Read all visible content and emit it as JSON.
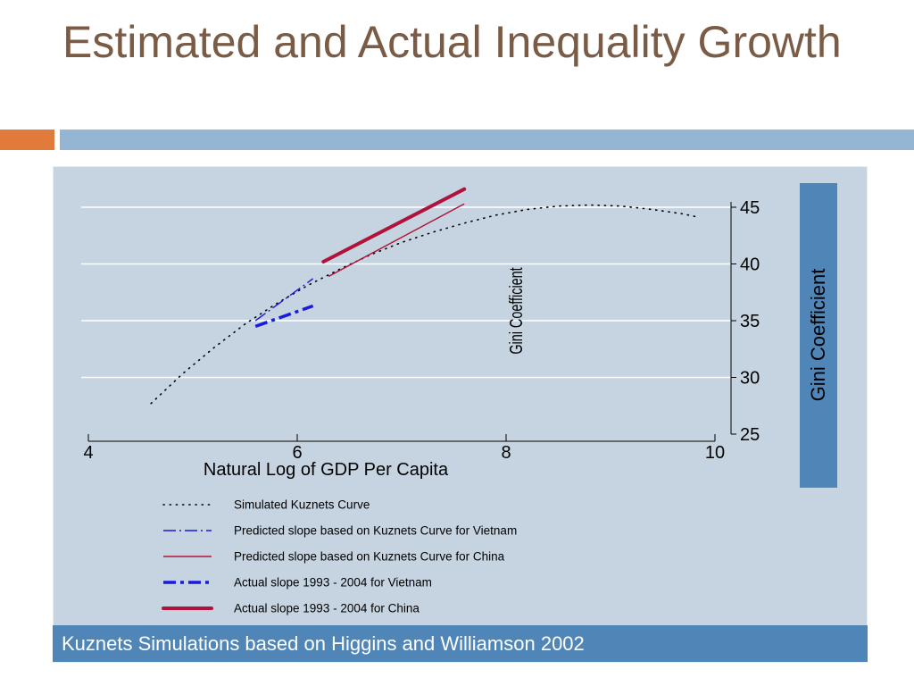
{
  "slide": {
    "title": "Estimated and Actual Inequality Growth",
    "caption": "Kuznets Simulations based on Higgins and Williamson 2002",
    "overlay_label": "Gini Coefficient"
  },
  "colors": {
    "title": "#7a5c46",
    "accent_orange": "#e07b3c",
    "accent_blue": "#94b6d2",
    "panel_bg": "#c6d4e1",
    "caption_bg": "#4f86b7",
    "vietnam": "#1a1adb",
    "china": "#b0123a"
  },
  "chart_data": {
    "type": "line",
    "title": "",
    "xlabel": "Natural Log of GDP Per Capita",
    "ylabel": "Gini Coefficient",
    "xlim": [
      4,
      10
    ],
    "ylim": [
      25,
      46.5
    ],
    "x_ticks": [
      4,
      6,
      8,
      10
    ],
    "y_ticks": [
      25,
      30,
      35,
      40,
      45
    ],
    "y_axis_side": "right",
    "grid": "horizontal",
    "legend_placement": "bottom",
    "series": [
      {
        "name": "Simulated Kuznets Curve",
        "style": "dotted",
        "color": "#000000",
        "x": [
          4.6,
          4.9,
          5.2,
          5.5,
          5.8,
          6.1,
          6.4,
          6.7,
          7.0,
          7.3,
          7.6,
          7.9,
          8.2,
          8.5,
          8.8,
          9.1,
          9.4,
          9.7,
          9.85
        ],
        "y": [
          27.7,
          30.3,
          32.6,
          34.7,
          36.5,
          38.1,
          39.5,
          40.8,
          41.9,
          42.8,
          43.6,
          44.3,
          44.8,
          45.1,
          45.2,
          45.1,
          44.8,
          44.4,
          44.1
        ]
      },
      {
        "name": "Predicted slope based on Kuznets Curve for Vietnam",
        "style": "dash-dot",
        "color": "#1a1adb",
        "x": [
          5.6,
          6.15
        ],
        "y": [
          35.0,
          38.7
        ]
      },
      {
        "name": "Predicted slope based on Kuznets Curve for China",
        "style": "solid-thin",
        "color": "#b0123a",
        "x": [
          6.3,
          7.6
        ],
        "y": [
          38.9,
          45.3
        ]
      },
      {
        "name": "Actual slope 1993 - 2004 for Vietnam",
        "style": "dash-dot-thick",
        "color": "#1a1adb",
        "x": [
          5.6,
          6.15
        ],
        "y": [
          34.5,
          36.3
        ]
      },
      {
        "name": "Actual slope 1993 - 2004 for China",
        "style": "solid-thick",
        "color": "#b0123a",
        "x": [
          6.25,
          7.6
        ],
        "y": [
          40.2,
          46.6
        ]
      }
    ]
  }
}
